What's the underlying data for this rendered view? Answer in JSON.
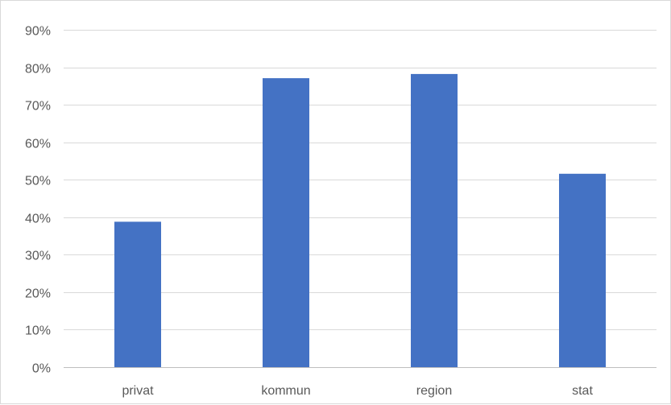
{
  "chart_data": {
    "type": "bar",
    "title": "",
    "xlabel": "",
    "ylabel": "",
    "categories": [
      "privat",
      "kommun",
      "region",
      "stat"
    ],
    "values": [
      0.388,
      0.771,
      0.782,
      0.516
    ],
    "ylim": [
      0,
      0.9
    ],
    "yticks": [
      0,
      0.1,
      0.2,
      0.3,
      0.4,
      0.5,
      0.6,
      0.7,
      0.8,
      0.9
    ],
    "ytick_labels": [
      "0%",
      "10%",
      "20%",
      "30%",
      "40%",
      "50%",
      "60%",
      "70%",
      "80%",
      "90%"
    ],
    "grid": true,
    "legend": "none",
    "bar_color": "#4472C4",
    "grid_color": "#d9d9d9",
    "axis_color": "#bfbfbf",
    "label_color": "#595959"
  }
}
